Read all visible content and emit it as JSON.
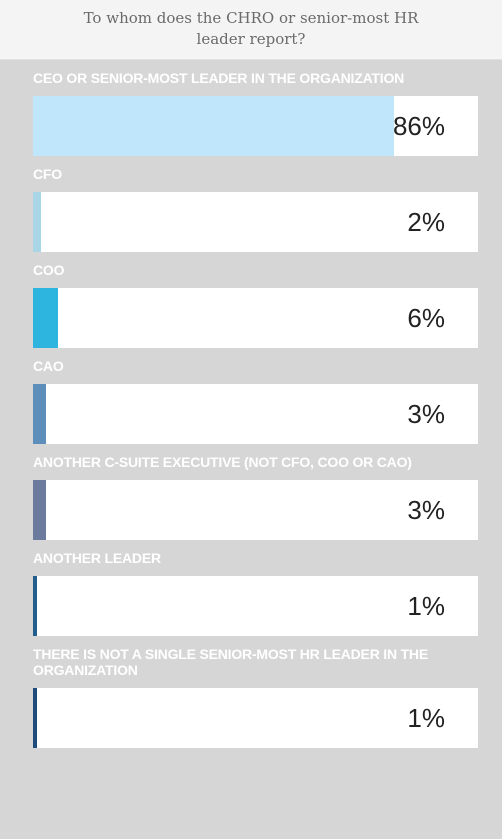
{
  "chart_data": {
    "type": "bar",
    "title": "To whom does the CHRO or senior-most HR leader report?",
    "categories": [
      "CEO OR SENIOR-MOST LEADER IN THE ORGANIZATION",
      "CFO",
      "COO",
      "CAO",
      "ANOTHER C-SUITE EXECUTIVE (NOT CFO, COO OR CAO)",
      "ANOTHER LEADER",
      "THERE IS NOT A SINGLE SENIOR-MOST HR LEADER IN THE ORGANIZATION"
    ],
    "values": [
      86,
      2,
      6,
      3,
      3,
      1,
      1
    ],
    "value_labels": [
      "86%",
      "2%",
      "6%",
      "3%",
      "3%",
      "1%",
      "1%"
    ],
    "colors": [
      "#bfe6fa",
      "#a9d6e6",
      "#2db5df",
      "#5d8fba",
      "#6c7a9e",
      "#235d8c",
      "#1f4c7c"
    ]
  }
}
